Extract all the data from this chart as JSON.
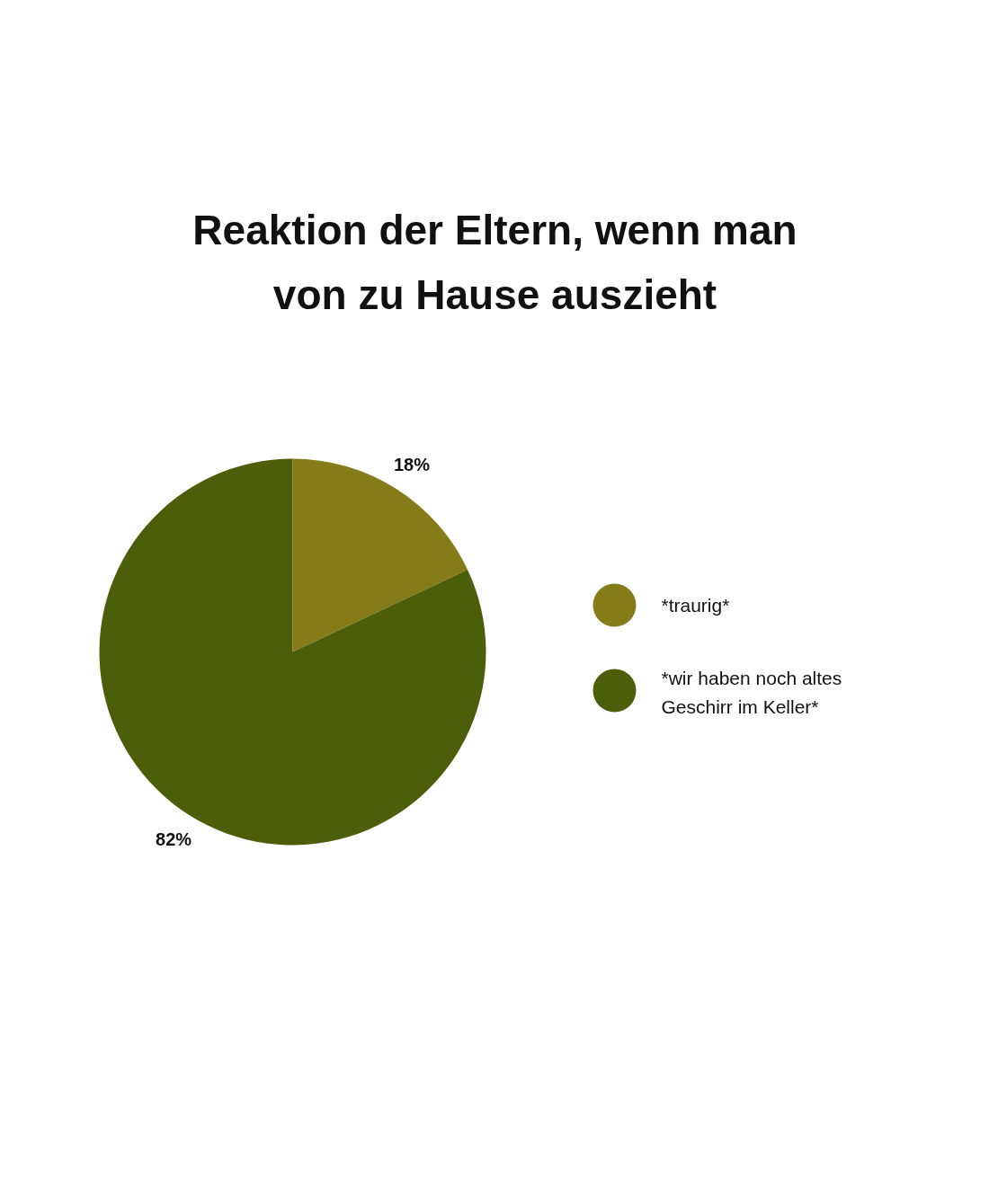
{
  "chart_data": {
    "type": "pie",
    "title": "Reaktion der Eltern, wenn man von zu Hause auszieht",
    "categories": [
      "*traurig*",
      "*wir haben noch altes Geschirr im Keller*"
    ],
    "values": [
      18,
      82
    ],
    "colors": [
      "#857b18",
      "#4d5e0b"
    ],
    "value_labels": [
      "18%",
      "82%"
    ],
    "legend": "right"
  }
}
